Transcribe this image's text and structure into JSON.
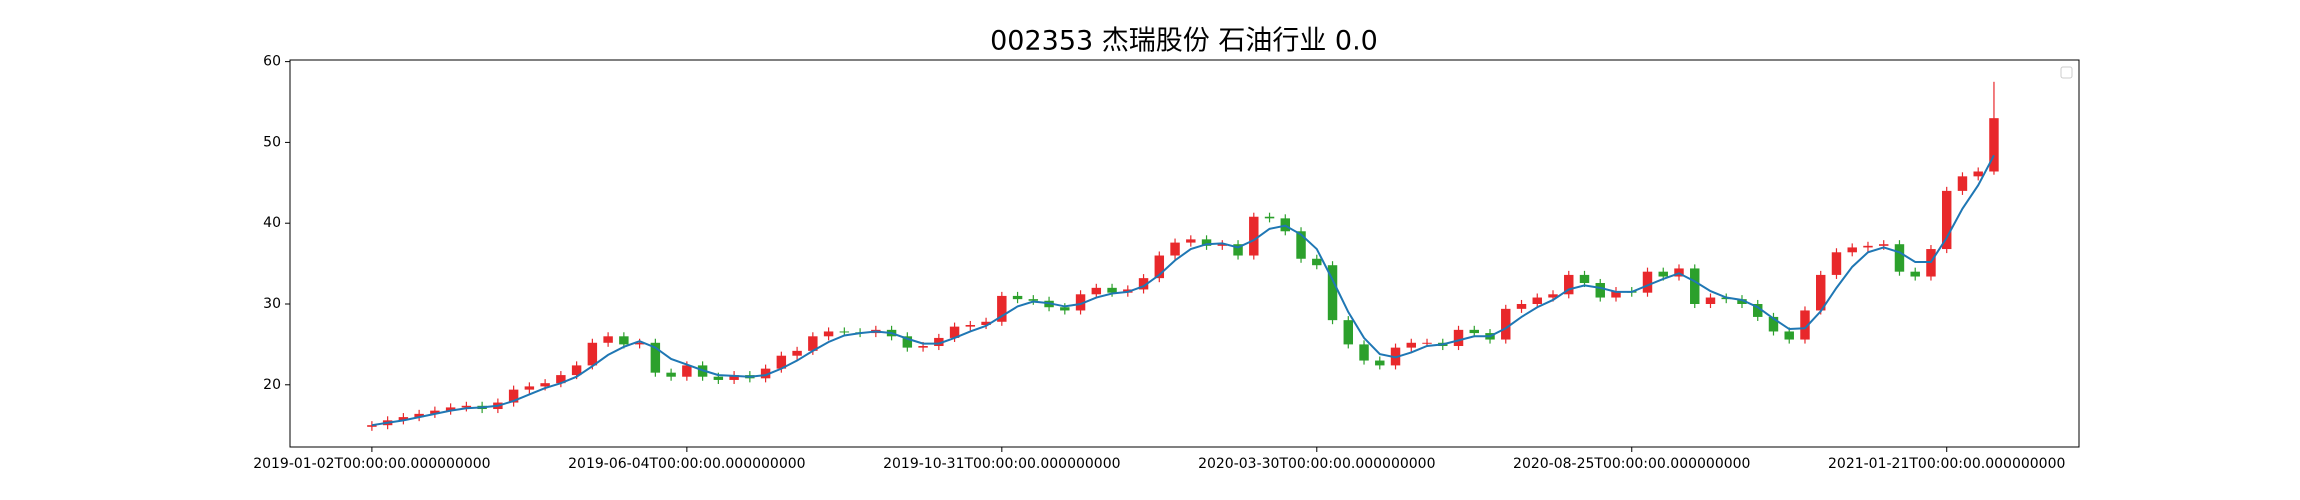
{
  "chart_data": {
    "type": "candlestick",
    "title": "002353 杰瑞股份 石油行业 0.0",
    "categories": [
      "2019-01-02T00:00:00.000000000",
      null,
      null,
      null,
      null,
      null,
      null,
      null,
      null,
      null,
      null,
      null,
      null,
      null,
      null,
      null,
      null,
      null,
      null,
      null,
      "2019-06-04T00:00:00.000000000",
      null,
      null,
      null,
      null,
      null,
      null,
      null,
      null,
      null,
      null,
      null,
      null,
      null,
      null,
      null,
      null,
      null,
      null,
      null,
      "2019-10-31T00:00:00.000000000",
      null,
      null,
      null,
      null,
      null,
      null,
      null,
      null,
      null,
      null,
      null,
      null,
      null,
      null,
      null,
      null,
      null,
      null,
      null,
      "2020-03-30T00:00:00.000000000",
      null,
      null,
      null,
      null,
      null,
      null,
      null,
      null,
      null,
      null,
      null,
      null,
      null,
      null,
      null,
      null,
      null,
      null,
      null,
      "2020-08-25T00:00:00.000000000",
      null,
      null,
      null,
      null,
      null,
      null,
      null,
      null,
      null,
      null,
      null,
      null,
      null,
      null,
      null,
      null,
      null,
      null,
      null,
      "2021-01-21T00:00:00.000000000",
      null,
      null,
      null
    ],
    "open": [
      14.8,
      15.0,
      15.6,
      16.0,
      16.4,
      16.8,
      17.2,
      17.4,
      17.0,
      17.8,
      19.4,
      19.8,
      20.2,
      21.2,
      22.4,
      25.2,
      26.0,
      25.0,
      25.2,
      21.5,
      21.0,
      22.4,
      21.0,
      20.6,
      21.2,
      20.8,
      22.0,
      23.6,
      24.2,
      26.0,
      26.6,
      26.5,
      26.4,
      26.8,
      26.0,
      24.6,
      24.8,
      25.8,
      27.2,
      27.4,
      27.8,
      31.0,
      30.6,
      30.4,
      29.6,
      29.2,
      31.2,
      32.0,
      31.4,
      31.8,
      33.2,
      36.0,
      37.6,
      38.0,
      37.2,
      37.4,
      36.0,
      40.8,
      40.6,
      39.0,
      35.6,
      34.8,
      28.0,
      25.0,
      23.0,
      22.4,
      24.6,
      25.2,
      25.2,
      24.8,
      26.8,
      26.4,
      25.6,
      29.4,
      30.0,
      30.8,
      31.2,
      33.6,
      32.6,
      30.8,
      31.6,
      31.4,
      34.0,
      33.4,
      34.4,
      30.0,
      30.8,
      30.6,
      30.0,
      28.4,
      26.6,
      25.6,
      29.2,
      33.6,
      36.4,
      37.0,
      37.2,
      37.4,
      34.0,
      33.4,
      36.8,
      44.0,
      45.8,
      46.4
    ],
    "high": [
      15.5,
      16.1,
      16.5,
      16.9,
      17.3,
      17.7,
      17.9,
      17.9,
      18.3,
      19.9,
      20.3,
      20.7,
      21.7,
      22.9,
      25.7,
      26.5,
      26.5,
      25.7,
      25.7,
      22.0,
      22.9,
      22.9,
      21.5,
      21.7,
      21.7,
      22.5,
      24.1,
      24.7,
      26.5,
      27.1,
      27.1,
      27.0,
      27.3,
      27.3,
      26.5,
      25.3,
      26.3,
      27.7,
      27.9,
      28.3,
      31.5,
      31.5,
      31.1,
      30.9,
      30.1,
      31.7,
      32.5,
      32.5,
      32.3,
      33.7,
      36.5,
      38.1,
      38.5,
      38.5,
      37.9,
      37.9,
      41.3,
      41.3,
      41.1,
      39.5,
      36.1,
      35.3,
      28.5,
      25.5,
      23.5,
      25.1,
      25.7,
      25.7,
      25.7,
      27.3,
      27.3,
      26.9,
      29.9,
      30.5,
      31.3,
      31.7,
      34.1,
      34.1,
      33.1,
      32.1,
      32.1,
      34.5,
      34.5,
      34.9,
      34.9,
      31.3,
      31.3,
      31.1,
      30.5,
      28.9,
      27.1,
      29.7,
      34.1,
      36.9,
      37.5,
      37.7,
      37.9,
      37.9,
      34.5,
      37.3,
      44.5,
      46.3,
      46.9,
      57.5
    ],
    "low": [
      14.3,
      14.5,
      15.1,
      15.5,
      15.9,
      16.3,
      16.7,
      16.5,
      16.5,
      17.3,
      18.9,
      19.3,
      19.7,
      20.7,
      21.9,
      24.7,
      24.5,
      24.5,
      21.0,
      20.5,
      20.5,
      20.5,
      20.1,
      20.1,
      20.3,
      20.3,
      21.5,
      23.1,
      23.7,
      25.5,
      26.0,
      25.9,
      25.9,
      25.5,
      24.1,
      24.1,
      24.3,
      25.3,
      26.7,
      26.9,
      27.3,
      30.1,
      29.9,
      29.1,
      28.7,
      28.7,
      30.7,
      30.9,
      30.9,
      31.3,
      32.7,
      35.5,
      37.1,
      36.7,
      36.7,
      35.5,
      35.5,
      40.1,
      38.5,
      35.1,
      34.3,
      27.5,
      24.5,
      22.5,
      21.9,
      21.9,
      24.1,
      24.7,
      24.3,
      24.3,
      25.9,
      25.1,
      25.1,
      28.9,
      29.5,
      30.3,
      30.7,
      32.1,
      30.3,
      30.3,
      30.9,
      30.9,
      32.9,
      32.9,
      29.5,
      29.5,
      30.1,
      29.5,
      27.9,
      26.1,
      25.1,
      25.1,
      28.7,
      33.1,
      35.9,
      36.5,
      36.7,
      33.5,
      32.9,
      32.9,
      36.3,
      43.5,
      45.3,
      46.0
    ],
    "close": [
      15.0,
      15.6,
      16.0,
      16.4,
      16.8,
      17.2,
      17.4,
      17.0,
      17.8,
      19.4,
      19.8,
      20.2,
      21.2,
      22.4,
      25.2,
      26.0,
      25.0,
      25.2,
      21.5,
      21.0,
      22.4,
      21.0,
      20.6,
      21.2,
      20.8,
      22.0,
      23.6,
      24.2,
      26.0,
      26.6,
      26.5,
      26.4,
      26.8,
      26.0,
      24.6,
      24.8,
      25.8,
      27.2,
      27.4,
      27.8,
      31.0,
      30.6,
      30.4,
      29.6,
      29.2,
      31.2,
      32.0,
      31.4,
      31.8,
      33.2,
      36.0,
      37.6,
      38.0,
      37.2,
      37.4,
      36.0,
      40.8,
      40.6,
      39.0,
      35.6,
      34.8,
      28.0,
      25.0,
      23.0,
      22.4,
      24.6,
      25.2,
      25.2,
      24.8,
      26.8,
      26.4,
      25.6,
      29.4,
      30.0,
      30.8,
      31.2,
      33.6,
      32.6,
      30.8,
      31.6,
      31.4,
      34.0,
      33.4,
      34.4,
      30.0,
      30.8,
      30.6,
      30.0,
      28.4,
      26.6,
      25.6,
      29.2,
      33.6,
      36.4,
      37.0,
      37.2,
      37.4,
      34.0,
      33.4,
      36.8,
      44.0,
      45.8,
      46.4,
      53.0
    ],
    "up_color": "#e8282b",
    "down_color": "#2ca02c",
    "ma": {
      "color": "#1f77b4",
      "values": [
        15.0,
        15.3,
        15.6,
        16.0,
        16.4,
        16.8,
        17.1,
        17.2,
        17.4,
        18.0,
        18.8,
        19.6,
        20.2,
        21.0,
        22.3,
        23.7,
        24.7,
        25.4,
        24.6,
        23.2,
        22.5,
        21.8,
        21.2,
        21.1,
        21.0,
        21.2,
        22.0,
        23.0,
        24.2,
        25.3,
        26.1,
        26.4,
        26.6,
        26.4,
        25.7,
        25.1,
        25.1,
        25.8,
        26.6,
        27.3,
        28.5,
        29.7,
        30.3,
        30.1,
        29.7,
        30.0,
        30.8,
        31.3,
        31.5,
        32.2,
        33.6,
        35.4,
        36.8,
        37.4,
        37.5,
        37.0,
        37.9,
        39.3,
        39.7,
        38.6,
        36.8,
        33.0,
        29.0,
        25.8,
        23.8,
        23.4,
        24.0,
        24.8,
        25.0,
        25.5,
        26.0,
        26.0,
        27.0,
        28.4,
        29.6,
        30.5,
        31.8,
        32.3,
        32.0,
        31.5,
        31.5,
        32.3,
        33.1,
        33.8,
        32.8,
        31.6,
        30.8,
        30.5,
        29.6,
        28.2,
        26.9,
        27.0,
        29.1,
        32.0,
        34.6,
        36.4,
        37.0,
        36.4,
        35.2,
        35.2,
        38.2,
        41.8,
        44.7,
        48.4
      ]
    },
    "ylim": [
      12.3,
      60.2
    ],
    "yticks": [
      20,
      30,
      40,
      50,
      60
    ]
  }
}
